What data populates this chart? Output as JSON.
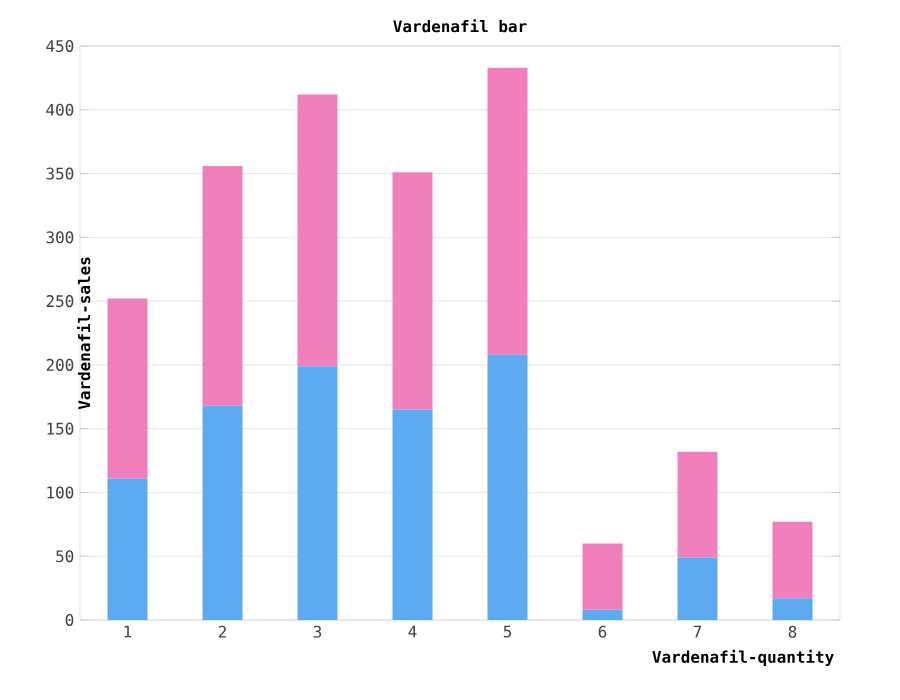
{
  "chart_data": {
    "type": "bar",
    "title": "Vardenafil bar",
    "xlabel": "Vardenafil-quantity",
    "ylabel": "Vardenafil-sales",
    "categories": [
      "1",
      "2",
      "3",
      "4",
      "5",
      "6",
      "7",
      "8"
    ],
    "stacked": true,
    "series": [
      {
        "color": "#5eaaf0",
        "values": [
          111,
          168,
          199,
          165,
          208,
          8,
          49,
          17
        ]
      },
      {
        "color": "#f07fbb",
        "values": [
          141,
          188,
          213,
          186,
          225,
          52,
          83,
          60
        ]
      }
    ],
    "ylim": [
      0,
      450
    ],
    "yticks": [
      0,
      50,
      100,
      150,
      200,
      250,
      300,
      350,
      400,
      450
    ],
    "grid": "y"
  }
}
